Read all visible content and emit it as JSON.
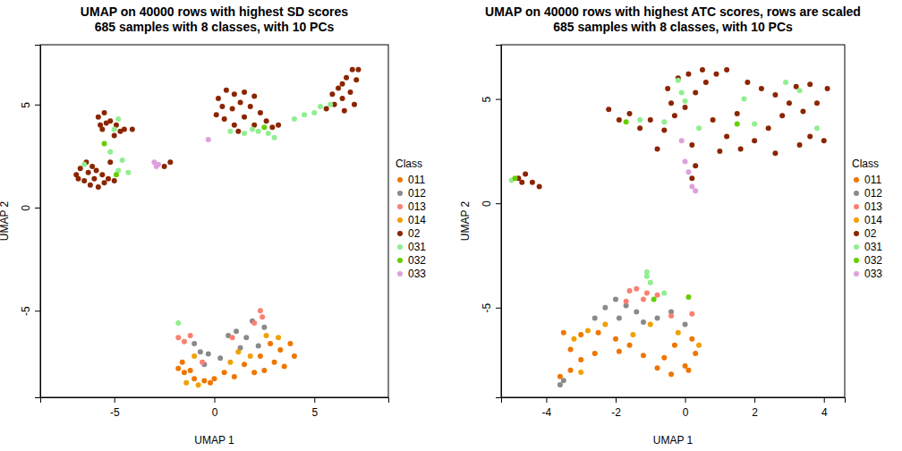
{
  "chart_data": [
    {
      "type": "scatter",
      "title": [
        "UMAP on 40000 rows with highest SD scores",
        "685 samples with 8 classes, with 10 PCs"
      ],
      "x_label": "UMAP 1",
      "y_label": "UMAP 2",
      "legend_title": "Class",
      "legend": "right",
      "xlim": [
        -8.7,
        8.7
      ],
      "xticks": [
        -5,
        0,
        5
      ],
      "ylim": [
        -9.2,
        7.9
      ],
      "yticks": [
        -5,
        0,
        5
      ],
      "series": [
        {
          "name": "011",
          "color": "#EE7600",
          "x": [
            -1.5,
            -1.0,
            -0.5,
            0,
            0.5,
            -1.6,
            -1.2,
            -0.2,
            1.0,
            -1.8,
            2.8,
            3.3,
            3.8,
            4.0,
            3.0,
            2.5,
            2.0,
            1.5,
            3.5,
            2.3
          ],
          "values": [
            -8.0,
            -8.3,
            -8.4,
            -8.3,
            -8.0,
            -7.5,
            -7.9,
            -8.5,
            -8.2,
            -7.8,
            -6.6,
            -6.9,
            -6.6,
            -7.2,
            -7.5,
            -7.9,
            -8.0,
            -7.6,
            -7.7,
            -7.2
          ]
        },
        {
          "name": "012",
          "color": "#8B8989",
          "x": [
            -0.7,
            -0.3,
            -1.0,
            0.7,
            1.1,
            1.6,
            2.2,
            2.5,
            -0.5,
            1.3,
            1.9,
            0.3
          ],
          "values": [
            -7.0,
            -7.1,
            -6.6,
            -6.2,
            -6.0,
            -6.3,
            -6.7,
            -5.8,
            -7.6,
            -6.8,
            -5.5,
            -7.3
          ]
        },
        {
          "name": "013",
          "color": "#FA8072",
          "x": [
            -1.8,
            -1.5,
            -1.2,
            2.3,
            2.4,
            2.0,
            0.9,
            -0.6
          ],
          "values": [
            -6.3,
            -6.5,
            -6.2,
            -5.0,
            -5.3,
            -5.6,
            -6.3,
            -7.5
          ]
        },
        {
          "name": "014",
          "color": "#F0A000",
          "x": [
            -1.4,
            -0.8,
            1.2,
            1.8,
            2.6,
            3.2,
            0.8,
            -1.0
          ],
          "values": [
            -8.5,
            -8.6,
            -7.0,
            -7.2,
            -6.2,
            -6.3,
            -7.5,
            -7.2
          ]
        },
        {
          "name": "02",
          "color": "#8B2500",
          "x": [
            -6.9,
            -6.5,
            -6.2,
            -5.8,
            -5.5,
            -6.7,
            -6.3,
            -6.0,
            -5.6,
            -5.3,
            -6.8,
            -6.1,
            -5.2,
            -5.0,
            -6.4,
            -5.9,
            -5.8,
            -5.5,
            -5.2,
            -4.9,
            -4.5,
            -4.1,
            -5.6,
            -5.0,
            -4.7,
            -5.4,
            -5.7,
            -2.2,
            -2.5,
            0.2,
            0.6,
            1.0,
            1.5,
            2.0,
            0.4,
            0.9,
            1.3,
            1.8,
            2.3,
            0.5,
            1.0,
            1.5,
            0.1,
            2.0,
            2.6,
            2.9,
            1.2,
            3.2,
            5.6,
            6.0,
            6.4,
            6.8,
            7.1,
            6.6,
            6.2,
            7.2,
            6.5,
            7.0,
            5.9,
            6.9,
            6.4
          ],
          "values": [
            1.6,
            1.3,
            1.1,
            1.0,
            1.2,
            1.9,
            1.7,
            1.4,
            1.6,
            1.4,
            1.4,
            2.0,
            2.2,
            1.3,
            2.2,
            1.8,
            4.4,
            4.6,
            4.2,
            4.0,
            3.8,
            3.8,
            3.8,
            3.5,
            3.7,
            4.1,
            4.0,
            2.2,
            2.0,
            5.3,
            5.7,
            5.5,
            5.6,
            5.4,
            4.9,
            4.8,
            5.1,
            4.9,
            4.6,
            4.3,
            4.0,
            4.4,
            4.5,
            4.0,
            4.2,
            3.9,
            3.7,
            4.0,
            4.8,
            5.0,
            5.3,
            5.6,
            6.2,
            6.3,
            5.8,
            6.7,
            4.7,
            5.0,
            5.5,
            6.7,
            6.0
          ]
        },
        {
          "name": "031",
          "color": "#90EE90",
          "x": [
            -4.6,
            -4.8,
            -4.3,
            -5.2,
            -6.5,
            0.8,
            1.5,
            2.2,
            2.7,
            3.0,
            1.9,
            4.0,
            4.5,
            5.0,
            5.3,
            5.8,
            -5.0,
            -4.8,
            -1.8
          ],
          "values": [
            2.3,
            1.8,
            1.7,
            2.7,
            2.1,
            3.7,
            3.6,
            3.7,
            3.6,
            3.4,
            3.8,
            4.3,
            4.5,
            4.6,
            4.9,
            5.0,
            3.8,
            4.3,
            -5.6
          ]
        },
        {
          "name": "032",
          "color": "#66CD00",
          "x": [
            -4.9,
            2.5,
            -5.5
          ],
          "values": [
            1.6,
            3.9,
            3.1
          ]
        },
        {
          "name": "033",
          "color": "#DDA0DD",
          "x": [
            -0.3,
            -2.8,
            -2.9,
            -3.0
          ],
          "values": [
            3.3,
            2.1,
            2.0,
            2.2
          ]
        }
      ]
    },
    {
      "type": "scatter",
      "title": [
        "UMAP on 40000 rows with highest ATC scores, rows are scaled",
        "685 samples with 8 classes, with 10 PCs"
      ],
      "x_label": "UMAP 1",
      "y_label": "UMAP 2",
      "legend_title": "Class",
      "legend": "right",
      "xlim": [
        -5.3,
        4.6
      ],
      "xticks": [
        -4,
        -2,
        0,
        2,
        4
      ],
      "ylim": [
        -9.3,
        7.6
      ],
      "yticks": [
        -5,
        0,
        5
      ],
      "series": [
        {
          "name": "011",
          "color": "#EE7600",
          "x": [
            -3.6,
            -3.3,
            -3.0,
            -2.6,
            -3.5,
            -3.0,
            -2.5,
            -2.0,
            -1.6,
            -1.2,
            -0.8,
            -0.4,
            0.0,
            0.3,
            0.2,
            -0.3,
            -3.3,
            -1.9,
            -0.6,
            0.1
          ],
          "values": [
            -8.3,
            -8.0,
            -7.5,
            -7.2,
            -6.2,
            -6.3,
            -6.2,
            -6.5,
            -6.8,
            -7.3,
            -7.9,
            -8.2,
            -7.8,
            -7.2,
            -6.5,
            -6.8,
            -7.0,
            -7.1,
            -7.4,
            -8.0
          ]
        },
        {
          "name": "012",
          "color": "#8B8989",
          "x": [
            -3.6,
            -3.5,
            -2.0,
            -1.7,
            -1.4,
            -2.3,
            -1.9,
            -0.8,
            -0.4,
            0.0,
            -1.2,
            -2.6
          ],
          "values": [
            -8.7,
            -8.5,
            -4.6,
            -4.9,
            -5.2,
            -5.0,
            -5.5,
            -5.5,
            -5.2,
            -5.8,
            -5.7,
            -5.5
          ]
        },
        {
          "name": "013",
          "color": "#FA8072",
          "x": [
            -1.6,
            -1.4,
            -1.1,
            -0.8,
            -0.4,
            -1.7,
            -1.2,
            0.2
          ],
          "values": [
            -4.2,
            -4.1,
            -4.3,
            -4.4,
            -5.4,
            -4.7,
            -4.6,
            -5.3
          ]
        },
        {
          "name": "014",
          "color": "#F0A000",
          "x": [
            -3.2,
            -2.8,
            -2.3,
            -1.5,
            -3.0,
            -1.0,
            -0.2,
            0.4
          ],
          "values": [
            -6.5,
            -6.1,
            -5.8,
            -6.3,
            -8.1,
            -5.8,
            -6.2,
            -6.8
          ]
        },
        {
          "name": "02",
          "color": "#8B2500",
          "x": [
            -2.2,
            -1.9,
            -1.6,
            -1.3,
            -1.0,
            -0.6,
            -0.3,
            0,
            0.3,
            0.6,
            0.9,
            1.2,
            -0.2,
            -0.5,
            0.1,
            0.5,
            1.8,
            2.2,
            2.6,
            3.0,
            3.4,
            3.8,
            4.1,
            3.6,
            3.2,
            2.8,
            2.4,
            2.0,
            1.6,
            1.2,
            0.8,
            1.0,
            3.6,
            4.0,
            3.3,
            2.6,
            -0.8,
            0.2,
            0.3,
            0.2,
            -0.4,
            1.5,
            -4.8,
            -4.6,
            -4.4,
            -4.2,
            -4.7
          ],
          "values": [
            4.5,
            4.0,
            4.3,
            3.6,
            4.0,
            3.5,
            4.2,
            4.6,
            5.3,
            5.8,
            6.2,
            6.4,
            6.0,
            5.5,
            6.2,
            6.4,
            5.8,
            5.5,
            5.2,
            4.8,
            4.4,
            4.8,
            5.5,
            5.7,
            5.6,
            4.2,
            3.6,
            3.0,
            2.6,
            3.2,
            4.0,
            2.5,
            3.2,
            3.0,
            2.8,
            2.4,
            2.6,
            2.8,
            1.8,
            1.2,
            4.8,
            4.3,
            1.2,
            1.4,
            1.0,
            0.8,
            1.0
          ]
        },
        {
          "name": "031",
          "color": "#90EE90",
          "x": [
            -0.2,
            -0.1,
            0.0,
            -0.6,
            -1.3,
            1.7,
            2.9,
            3.3,
            2.0,
            0.4,
            -1.1,
            -1.0,
            -0.6,
            -5.0,
            3.8,
            -1.1
          ],
          "values": [
            5.9,
            5.3,
            4.9,
            3.9,
            4.0,
            5.0,
            5.8,
            5.4,
            3.8,
            3.6,
            -3.5,
            -3.8,
            -4.3,
            1.1,
            3.6,
            -3.3
          ]
        },
        {
          "name": "032",
          "color": "#66CD00",
          "x": [
            -1.7,
            -4.9,
            1.5,
            -0.9,
            0.1
          ],
          "values": [
            3.9,
            1.2,
            3.8,
            -4.6,
            -4.5
          ]
        },
        {
          "name": "033",
          "color": "#DDA0DD",
          "x": [
            0.0,
            0.2,
            0.3,
            -0.1,
            0.1
          ],
          "values": [
            2.0,
            0.8,
            0.6,
            3.0,
            1.5
          ]
        }
      ]
    }
  ]
}
